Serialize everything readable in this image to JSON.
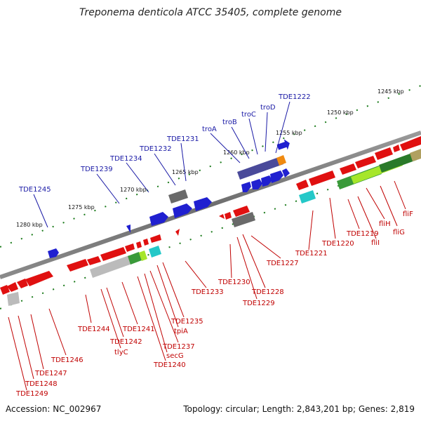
{
  "title": "Treponema denticola ATCC 35405, complete genome",
  "footer": {
    "accession": "Accession: NC_002967",
    "summary": "Topology: circular; Length: 2,843,201 bp; Genes: 2,819"
  },
  "colors": {
    "forward_label": "#1a1aa6",
    "reverse_label": "#c00000",
    "backbone": "#7a7a7a",
    "tick": "#1a7a1a"
  },
  "ticks": [
    "1245 kbp",
    "1250 kbp",
    "1255 kbp",
    "1260 kbp",
    "1265 kbp",
    "1270 kbp",
    "1275 kbp",
    "1280 kbp"
  ],
  "labels_forward": [
    "TDE1222",
    "troD",
    "troC",
    "troB",
    "troA",
    "TDE1231",
    "TDE1232",
    "TDE1234",
    "TDE1239",
    "TDE1245"
  ],
  "labels_reverse": [
    "fliF",
    "fliG",
    "fliH",
    "fliI",
    "TDE1219",
    "TDE1220",
    "TDE1221",
    "TDE1227",
    "TDE1228",
    "TDE1229",
    "TDE1230",
    "TDE1233",
    "TDE1235",
    "tpiA",
    "TDE1237",
    "secG",
    "TDE1240",
    "TDE1241",
    "TDE1242",
    "tlyC",
    "TDE1244",
    "TDE1246",
    "TDE1247",
    "TDE1248",
    "TDE1249"
  ]
}
